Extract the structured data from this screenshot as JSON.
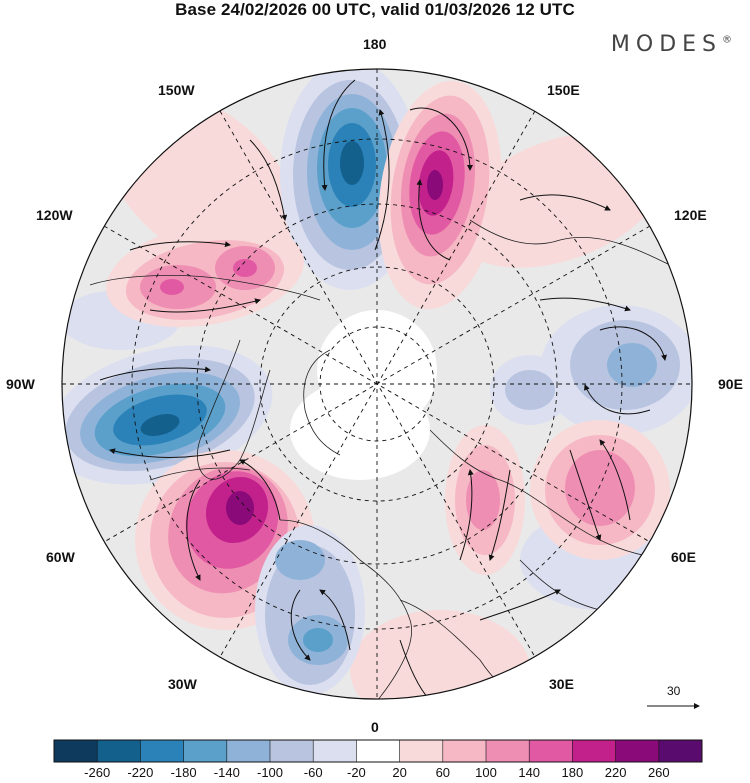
{
  "title": "Base 24/02/2026 00 UTC, valid 01/03/2026 12 UTC",
  "brand": "MODES",
  "brand_mark": "®",
  "longitude_labels": {
    "top": "180",
    "top_left": "150W",
    "top_right": "150E",
    "upper_left": "120W",
    "upper_right": "120E",
    "left": "90W",
    "right": "90E",
    "lower_left": "60W",
    "lower_right": "60E",
    "bottom_left": "30W",
    "bottom_right": "30E",
    "bottom": "0"
  },
  "reference_vector_label": "30",
  "colorbar": {
    "ticks": [
      "-260",
      "-220",
      "-180",
      "-140",
      "-100",
      "-60",
      "-20",
      "20",
      "60",
      "100",
      "140",
      "180",
      "220",
      "260"
    ],
    "colors": [
      "#0e3a5e",
      "#13608d",
      "#2b82b8",
      "#5aa0cb",
      "#8fb3d8",
      "#b8c4e0",
      "#dcdff0",
      "#ffffff",
      "#f8dada",
      "#f5b8c4",
      "#ef8eb3",
      "#e259a3",
      "#c2218c",
      "#8b0a7a",
      "#5a0c6e"
    ]
  },
  "anomaly_centers": [
    {
      "lon_label": "180W",
      "sign": "negative",
      "value": -200
    },
    {
      "lon_label": "150E",
      "sign": "positive",
      "value": 220
    },
    {
      "lon_label": "90W",
      "sign": "negative",
      "value": -180
    },
    {
      "lon_label": "60W",
      "sign": "positive",
      "value": 220
    },
    {
      "lon_label": "120W",
      "sign": "positive",
      "value": 120
    },
    {
      "lon_label": "90E",
      "sign": "negative",
      "value": -100
    },
    {
      "lon_label": "60E",
      "sign": "positive",
      "value": 120
    },
    {
      "lon_label": "30W",
      "sign": "negative",
      "value": -120
    }
  ]
}
